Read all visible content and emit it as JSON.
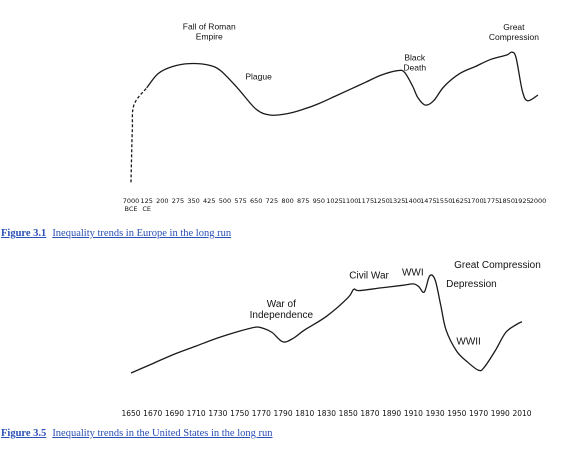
{
  "chart_data": [
    {
      "type": "line",
      "title": "",
      "xlabel": "",
      "ylabel": "",
      "ticks": [
        "7000 BCE",
        "125 CE",
        "200",
        "275",
        "350",
        "425",
        "500",
        "575",
        "650",
        "725",
        "800",
        "875",
        "950",
        "1025",
        "1100",
        "1175",
        "1250",
        "1325",
        "1400",
        "1475",
        "1550",
        "1625",
        "1700",
        "1775",
        "1850",
        "1925",
        "2000"
      ],
      "x": [
        -7000,
        -6400,
        -5700,
        125,
        180,
        250,
        330,
        420,
        480,
        560,
        650,
        720,
        800,
        875,
        950,
        1025,
        1100,
        1175,
        1250,
        1325,
        1360,
        1400,
        1425,
        1460,
        1500,
        1550,
        1625,
        1700,
        1775,
        1850,
        1875,
        1895,
        1925,
        1950,
        2000
      ],
      "y": [
        4,
        40,
        58,
        70,
        80,
        85,
        87,
        86,
        82,
        70,
        55,
        51,
        52,
        55,
        59,
        64,
        69,
        74,
        79,
        82,
        81,
        71,
        63,
        58,
        61,
        71,
        80,
        85,
        90,
        93,
        95,
        91,
        68,
        61,
        65
      ],
      "dashed_until_x": 125,
      "annotations": [
        {
          "text_lines": [
            "Fall of Roman",
            "Empire"
          ],
          "x": 425
        },
        {
          "text_lines": [
            "Plague"
          ],
          "x": 575
        },
        {
          "text_lines": [
            "Black",
            "Death"
          ],
          "x": 1400
        },
        {
          "text_lines": [
            "Great",
            "Compression"
          ],
          "x": 1875
        }
      ]
    },
    {
      "type": "line",
      "title": "",
      "xlabel": "",
      "ylabel": "",
      "ticks": [
        1650,
        1670,
        1690,
        1710,
        1730,
        1750,
        1770,
        1790,
        1810,
        1830,
        1850,
        1870,
        1890,
        1910,
        1930,
        1950,
        1970,
        1990,
        2010
      ],
      "xlim": [
        1650,
        2010
      ],
      "x": [
        1650,
        1670,
        1690,
        1710,
        1730,
        1750,
        1765,
        1772,
        1780,
        1790,
        1800,
        1810,
        1830,
        1850,
        1855,
        1860,
        1880,
        1900,
        1910,
        1915,
        1920,
        1925,
        1930,
        1935,
        1940,
        1950,
        1960,
        1970,
        1975,
        1985,
        1995,
        2005,
        2010
      ],
      "y": [
        20,
        27,
        34,
        40,
        46,
        51,
        54,
        53,
        50,
        43,
        46,
        52,
        62,
        76,
        82,
        81,
        83,
        85,
        86,
        84,
        80,
        92,
        89,
        71,
        52,
        36,
        28,
        22,
        24,
        36,
        50,
        56,
        58
      ],
      "annotations": [
        {
          "text_lines": [
            "War of",
            "Independence"
          ],
          "x": 1770
        },
        {
          "text_lines": [
            "Civil War"
          ],
          "x": 1860
        },
        {
          "text_lines": [
            "WWI"
          ],
          "x": 1915
        },
        {
          "text_lines": [
            "Great Compression"
          ],
          "x": 1930
        },
        {
          "text_lines": [
            "Depression"
          ],
          "x": 1930
        },
        {
          "text_lines": [
            "WWII"
          ],
          "x": 1945
        }
      ]
    }
  ],
  "captions": [
    {
      "number": "Figure 3.1",
      "text": "Inequality trends in Europe in the long run"
    },
    {
      "number": "Figure 3.5",
      "text": "Inequality trends in the United States in the long run"
    }
  ],
  "colors": {
    "line": "#1a1a1a",
    "caption_link": "#2a4fb5"
  }
}
